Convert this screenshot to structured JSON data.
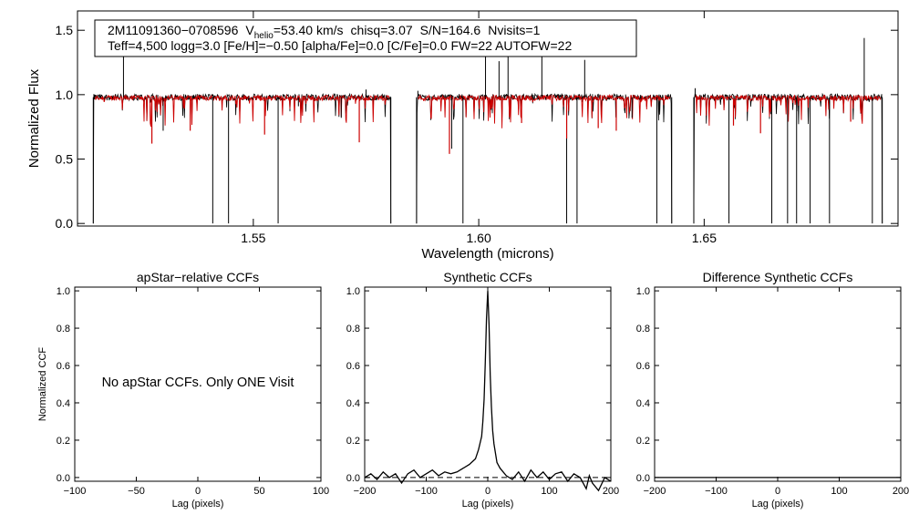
{
  "chart_data": [
    {
      "id": "spectrum",
      "type": "line",
      "xlabel": "Wavelength (microns)",
      "ylabel": "Normalized Flux",
      "xlim": [
        1.511,
        1.693
      ],
      "ylim": [
        -0.02,
        1.65
      ],
      "xticks": [
        "1.55",
        "1.60",
        "1.65"
      ],
      "xtick_values": [
        1.55,
        1.6,
        1.65
      ],
      "yticks": [
        "0.0",
        "0.5",
        "1.0",
        "1.5"
      ],
      "ytick_values": [
        0.0,
        0.5,
        1.0,
        1.5
      ],
      "info_box": {
        "object_id": "2M11091360−0708596",
        "vhelio_prefix": "V",
        "vhelio_sub": "helio",
        "vhelio_value": "=53.40 km/s",
        "chisq": "chisq=3.07",
        "snr": "S/N=164.6",
        "nvisits": "Nvisits=1",
        "line2": "Teff=4,500 logg=3.0 [Fe/H]=−0.50 [alpha/Fe]=0.0 [C/Fe]=0.0 FW=22 AUTOFW=22"
      },
      "chips": [
        [
          1.5145,
          1.5805
        ],
        [
          1.5862,
          1.6428
        ],
        [
          1.6477,
          1.6895
        ]
      ],
      "series": [
        {
          "color": "#000000",
          "points": [
            [
              1.5145,
              0.0
            ],
            [
              1.5148,
              1.0
            ],
            [
              1.52,
              0.98
            ],
            [
              1.5212,
              1.33
            ],
            [
              1.522,
              0.99
            ],
            [
              1.53,
              0.72
            ],
            [
              1.541,
              0.0
            ],
            [
              1.5445,
              0.0
            ],
            [
              1.549,
              0.96
            ],
            [
              1.5555,
              0.0
            ],
            [
              1.56,
              0.91
            ],
            [
              1.5695,
              0.82
            ],
            [
              1.575,
              1.04
            ],
            [
              1.5805,
              0.0
            ],
            [
              1.5862,
              0.0
            ],
            [
              1.5865,
              1.03
            ],
            [
              1.594,
              0.58
            ],
            [
              1.5965,
              0.0
            ],
            [
              1.6015,
              1.33
            ],
            [
              1.6045,
              1.26
            ],
            [
              1.6065,
              1.3
            ],
            [
              1.614,
              1.33
            ],
            [
              1.6195,
              0.0
            ],
            [
              1.6218,
              0.0
            ],
            [
              1.6235,
              1.27
            ],
            [
              1.634,
              0.82
            ],
            [
              1.6395,
              0.0
            ],
            [
              1.6428,
              0.0
            ],
            [
              1.6477,
              0.0
            ],
            [
              1.648,
              1.05
            ],
            [
              1.6555,
              0.0
            ],
            [
              1.665,
              0.0
            ],
            [
              1.6685,
              0.0
            ],
            [
              1.6705,
              0.0
            ],
            [
              1.6735,
              0.0
            ],
            [
              1.6778,
              0.0
            ],
            [
              1.6855,
              1.44
            ],
            [
              1.6873,
              0.0
            ],
            [
              1.6895,
              0.0
            ]
          ]
        },
        {
          "color": "#cc0000",
          "points": [
            [
              1.5155,
              0.98
            ],
            [
              1.5275,
              0.62
            ],
            [
              1.536,
              0.72
            ],
            [
              1.5525,
              0.69
            ],
            [
              1.5735,
              0.63
            ],
            [
              1.5795,
              0.96
            ],
            [
              1.5878,
              0.95
            ],
            [
              1.5935,
              0.54
            ],
            [
              1.6095,
              0.78
            ],
            [
              1.6195,
              0.66
            ],
            [
              1.6265,
              0.74
            ],
            [
              1.6305,
              0.72
            ],
            [
              1.6415,
              0.97
            ],
            [
              1.6495,
              0.97
            ],
            [
              1.6565,
              0.76
            ],
            [
              1.6625,
              0.7
            ],
            [
              1.6825,
              0.79
            ],
            [
              1.6885,
              0.96
            ]
          ]
        }
      ]
    },
    {
      "id": "apstar_ccf",
      "type": "line",
      "title": "apStar−relative CCFs",
      "xlabel": "Lag (pixels)",
      "ylabel": "Normalized CCF",
      "xlim": [
        -100,
        100
      ],
      "ylim": [
        -0.02,
        1.02
      ],
      "xticks": [
        "−100",
        "−50",
        "0",
        "50",
        "100"
      ],
      "xtick_values": [
        -100,
        -50,
        0,
        50,
        100
      ],
      "yticks": [
        "0.0",
        "0.2",
        "0.4",
        "0.6",
        "0.8",
        "1.0"
      ],
      "ytick_values": [
        0.0,
        0.2,
        0.4,
        0.6,
        0.8,
        1.0
      ],
      "note": "No apStar CCFs.  Only ONE Visit",
      "series": []
    },
    {
      "id": "synthetic_ccf",
      "type": "line",
      "title": "Synthetic CCFs",
      "xlabel": "Lag (pixels)",
      "xlim": [
        -200,
        200
      ],
      "ylim": [
        -0.02,
        1.02
      ],
      "xticks": [
        "−200",
        "−100",
        "0",
        "100",
        "200"
      ],
      "xtick_values": [
        -200,
        -100,
        0,
        100,
        200
      ],
      "yticks": [
        "0.0",
        "0.2",
        "0.4",
        "0.6",
        "0.8",
        "1.0"
      ],
      "ytick_values": [
        0.0,
        0.2,
        0.4,
        0.6,
        0.8,
        1.0
      ],
      "zero_line": 0.0,
      "series": [
        {
          "color": "#000000",
          "x": [
            -200,
            -190,
            -180,
            -170,
            -160,
            -150,
            -140,
            -130,
            -120,
            -110,
            -100,
            -90,
            -80,
            -70,
            -60,
            -50,
            -40,
            -30,
            -20,
            -15,
            -10,
            -8,
            -6,
            -4,
            -2,
            0,
            2,
            4,
            6,
            8,
            10,
            15,
            20,
            30,
            40,
            50,
            60,
            70,
            80,
            90,
            100,
            110,
            120,
            130,
            140,
            150,
            160,
            165,
            170,
            180,
            190,
            200
          ],
          "y": [
            0.0,
            0.02,
            -0.01,
            0.03,
            0.0,
            0.02,
            -0.03,
            0.02,
            0.04,
            0.0,
            0.02,
            0.04,
            0.01,
            0.03,
            0.02,
            0.03,
            0.05,
            0.07,
            0.1,
            0.15,
            0.22,
            0.3,
            0.42,
            0.62,
            0.85,
            1.0,
            0.82,
            0.55,
            0.38,
            0.25,
            0.18,
            0.08,
            0.05,
            0.01,
            -0.01,
            0.03,
            -0.02,
            0.04,
            0.0,
            0.03,
            -0.01,
            0.02,
            0.03,
            -0.02,
            0.02,
            0.0,
            -0.06,
            0.01,
            -0.03,
            -0.07,
            0.0,
            -0.02
          ]
        }
      ]
    },
    {
      "id": "difference_ccf",
      "type": "line",
      "title": "Difference Synthetic CCFs",
      "xlabel": "Lag (pixels)",
      "xlim": [
        -200,
        200
      ],
      "ylim": [
        -0.02,
        1.02
      ],
      "xticks": [
        "−200",
        "−100",
        "0",
        "100",
        "200"
      ],
      "xtick_values": [
        -200,
        -100,
        0,
        100,
        200
      ],
      "yticks": [
        "0.0",
        "0.2",
        "0.4",
        "0.6",
        "0.8",
        "1.0"
      ],
      "ytick_values": [
        0.0,
        0.2,
        0.4,
        0.6,
        0.8,
        1.0
      ],
      "series": [
        {
          "color": "#000000",
          "x": [
            -200,
            200
          ],
          "y": [
            0.0,
            0.0
          ]
        }
      ]
    }
  ]
}
